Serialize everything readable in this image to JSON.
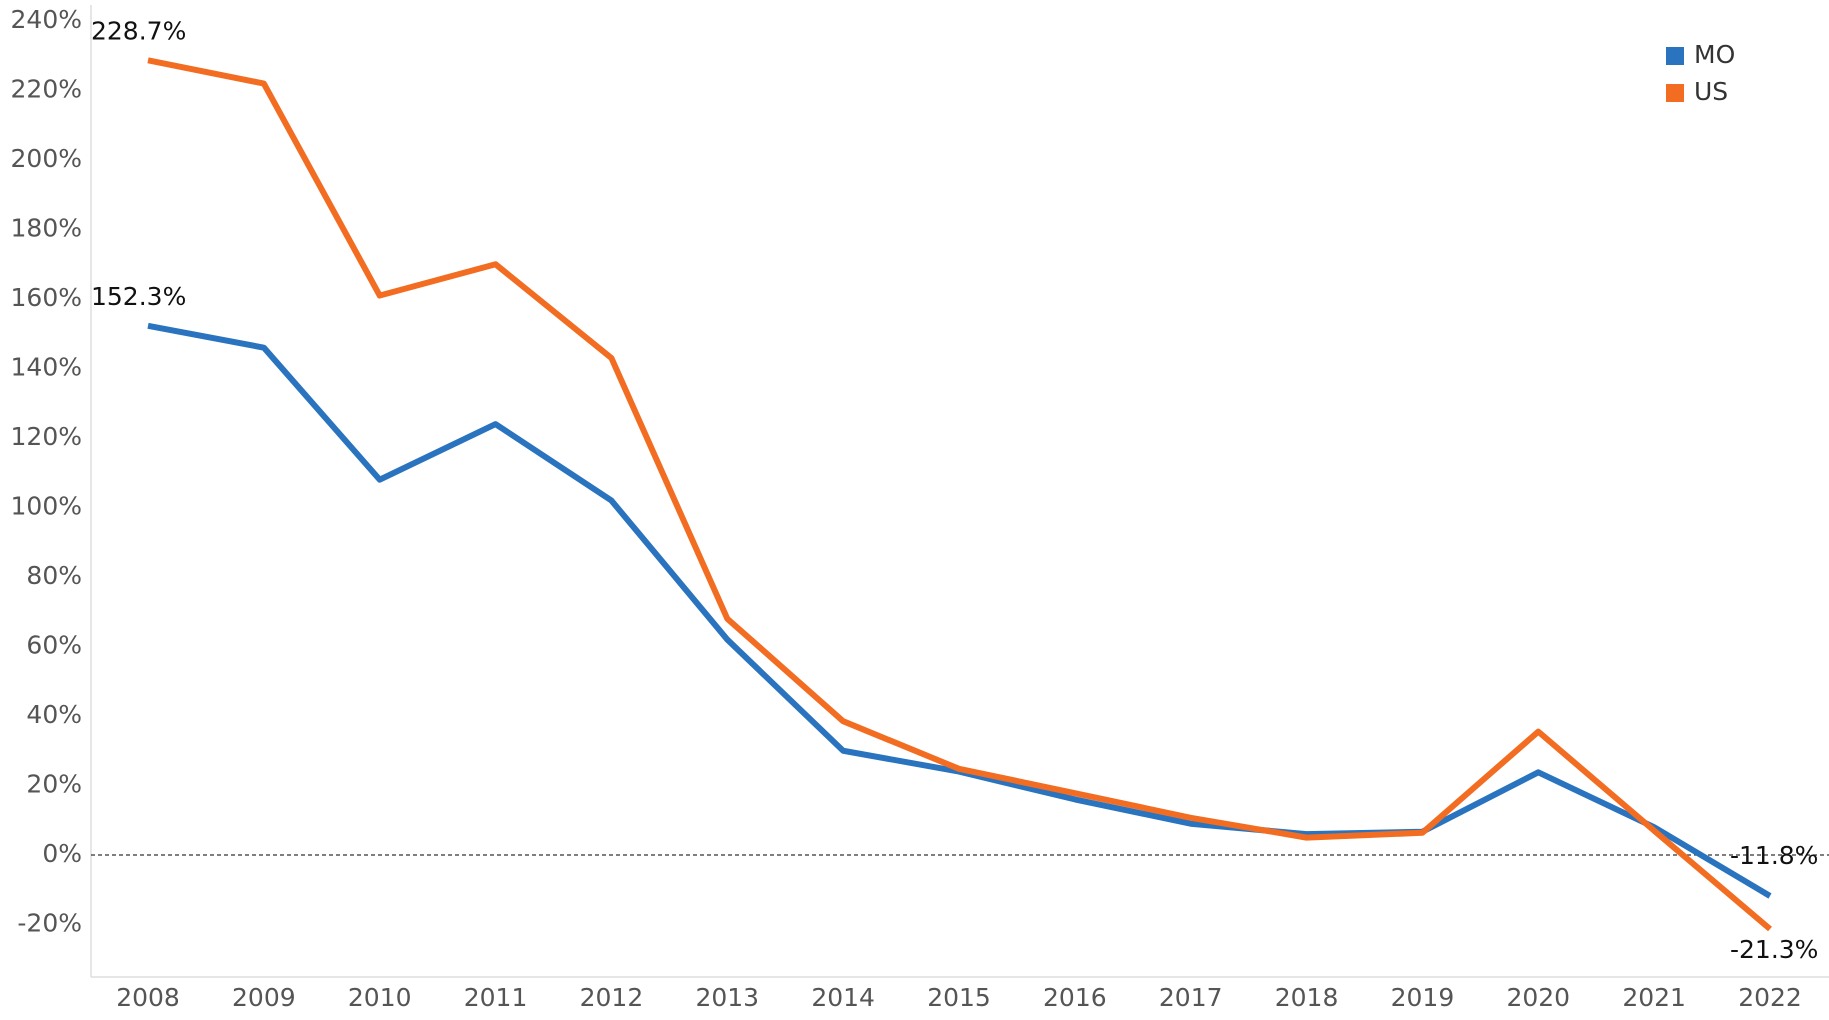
{
  "chart_data": {
    "type": "line",
    "categories": [
      "2008",
      "2009",
      "2010",
      "2011",
      "2012",
      "2013",
      "2014",
      "2015",
      "2016",
      "2017",
      "2018",
      "2019",
      "2020",
      "2021",
      "2022"
    ],
    "series": [
      {
        "name": "MO",
        "color": "#2a73be",
        "values": [
          152.3,
          146,
          108,
          124,
          102,
          62,
          30,
          24,
          16,
          9,
          6,
          6.7,
          23.8,
          8,
          -11.8
        ],
        "value_labels": [
          "152.3%",
          null,
          null,
          null,
          null,
          null,
          null,
          null,
          null,
          null,
          null,
          null,
          null,
          null,
          "-11.8%"
        ]
      },
      {
        "name": "US",
        "color": "#f26d21",
        "values": [
          228.7,
          222,
          161,
          170,
          143,
          68,
          38.5,
          24.8,
          17.8,
          10.7,
          5,
          6.4,
          35.5,
          7,
          -21.3
        ],
        "value_labels": [
          "228.7%",
          null,
          null,
          null,
          null,
          null,
          null,
          null,
          null,
          null,
          null,
          null,
          null,
          null,
          "-21.3%"
        ]
      }
    ],
    "ylim": [
      -35,
      243
    ],
    "yticks": [
      {
        "value": -20,
        "label": "-20%"
      },
      {
        "value": 0,
        "label": "0%"
      },
      {
        "value": 20,
        "label": "20%"
      },
      {
        "value": 40,
        "label": "40%"
      },
      {
        "value": 60,
        "label": "60%"
      },
      {
        "value": 80,
        "label": "80%"
      },
      {
        "value": 100,
        "label": "100%"
      },
      {
        "value": 120,
        "label": "120%"
      },
      {
        "value": 140,
        "label": "140%"
      },
      {
        "value": 160,
        "label": "160%"
      },
      {
        "value": 180,
        "label": "180%"
      },
      {
        "value": 200,
        "label": "200%"
      },
      {
        "value": 220,
        "label": "220%"
      },
      {
        "value": 240,
        "label": "240%"
      }
    ],
    "legend": "top-right",
    "grid": false
  }
}
